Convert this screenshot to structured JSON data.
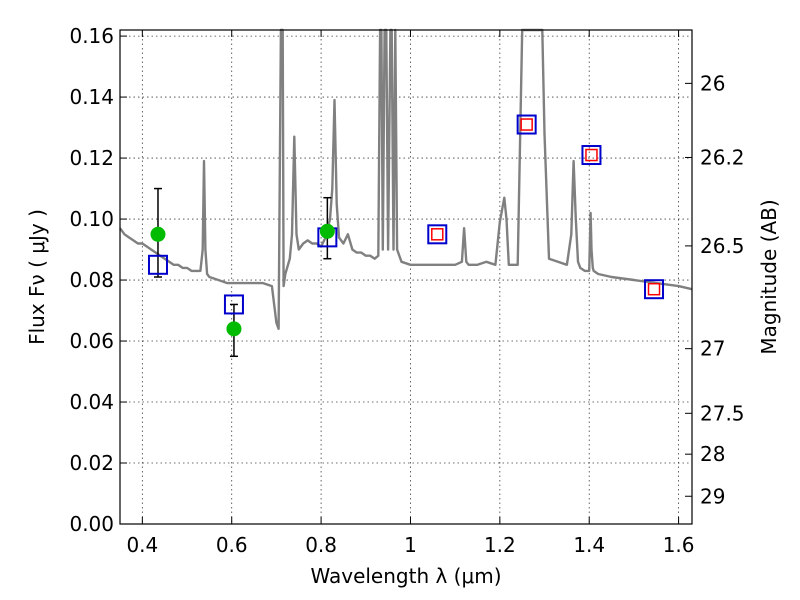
{
  "chart_data": {
    "type": "scatter",
    "xlabel": "Wavelength  λ (μm)",
    "ylabel": "Flux  Fν  ( μJy )",
    "ylabel_right": "Magnitude (AB)",
    "xlim": [
      0.35,
      1.63
    ],
    "ylim": [
      0.0,
      0.162
    ],
    "x_ticks": [
      0.4,
      0.6,
      0.8,
      1.0,
      1.2,
      1.4,
      1.6
    ],
    "x_tick_labels": [
      "0.4",
      "0.6",
      "0.8",
      "1",
      "1.2",
      "1.4",
      "1.6"
    ],
    "y_ticks": [
      0.0,
      0.02,
      0.04,
      0.06,
      0.08,
      0.1,
      0.12,
      0.14,
      0.16
    ],
    "y_tick_labels": [
      "0.00",
      "0.02",
      "0.04",
      "0.06",
      "0.08",
      "0.10",
      "0.12",
      "0.14",
      "0.16"
    ],
    "right_ticks": [
      {
        "flux": 0.1445,
        "label": "26"
      },
      {
        "flux": 0.1202,
        "label": "26.2"
      },
      {
        "flux": 0.0912,
        "label": "26.5"
      },
      {
        "flux": 0.0575,
        "label": "27"
      },
      {
        "flux": 0.0363,
        "label": "27.5"
      },
      {
        "flux": 0.0229,
        "label": "28"
      },
      {
        "flux": 0.0091,
        "label": "29"
      }
    ],
    "grid": true,
    "colors": {
      "spectrum": "#808080",
      "observed": "#00bb00",
      "model_square": "#0000cc",
      "model_inner": "#ff0000",
      "errorbar": "#000000"
    },
    "series": [
      {
        "name": "model spectrum",
        "kind": "line",
        "x": [
          0.35,
          0.36,
          0.37,
          0.38,
          0.39,
          0.4,
          0.41,
          0.42,
          0.43,
          0.44,
          0.45,
          0.46,
          0.47,
          0.48,
          0.49,
          0.5,
          0.51,
          0.52,
          0.53,
          0.535,
          0.538,
          0.541,
          0.545,
          0.55,
          0.57,
          0.59,
          0.61,
          0.63,
          0.65,
          0.67,
          0.69,
          0.7,
          0.705,
          0.71,
          0.712,
          0.714,
          0.716,
          0.718,
          0.72,
          0.73,
          0.735,
          0.74,
          0.745,
          0.75,
          0.76,
          0.77,
          0.78,
          0.79,
          0.8,
          0.81,
          0.82,
          0.825,
          0.83,
          0.835,
          0.84,
          0.85,
          0.86,
          0.87,
          0.88,
          0.89,
          0.9,
          0.91,
          0.92,
          0.928,
          0.932,
          0.935,
          0.938,
          0.942,
          0.946,
          0.95,
          0.955,
          0.958,
          0.962,
          0.966,
          0.97,
          0.98,
          1.0,
          1.02,
          1.04,
          1.06,
          1.08,
          1.1,
          1.115,
          1.12,
          1.125,
          1.13,
          1.15,
          1.17,
          1.19,
          1.2,
          1.21,
          1.215,
          1.22,
          1.23,
          1.24,
          1.25,
          1.255,
          1.26,
          1.265,
          1.27,
          1.275,
          1.28,
          1.285,
          1.29,
          1.295,
          1.3,
          1.31,
          1.33,
          1.35,
          1.36,
          1.365,
          1.37,
          1.375,
          1.38,
          1.39,
          1.4,
          1.403,
          1.405,
          1.408,
          1.41,
          1.42,
          1.45,
          1.5,
          1.55,
          1.6,
          1.63
        ],
        "y": [
          0.097,
          0.095,
          0.094,
          0.093,
          0.092,
          0.092,
          0.091,
          0.09,
          0.089,
          0.088,
          0.087,
          0.086,
          0.085,
          0.085,
          0.084,
          0.084,
          0.083,
          0.083,
          0.083,
          0.09,
          0.119,
          0.09,
          0.082,
          0.081,
          0.08,
          0.079,
          0.079,
          0.079,
          0.079,
          0.079,
          0.078,
          0.066,
          0.064,
          0.162,
          0.162,
          0.162,
          0.078,
          0.08,
          0.082,
          0.087,
          0.095,
          0.127,
          0.095,
          0.09,
          0.092,
          0.093,
          0.092,
          0.092,
          0.091,
          0.094,
          0.1,
          0.11,
          0.139,
          0.105,
          0.094,
          0.092,
          0.095,
          0.09,
          0.089,
          0.089,
          0.088,
          0.088,
          0.087,
          0.088,
          0.162,
          0.162,
          0.09,
          0.162,
          0.162,
          0.09,
          0.162,
          0.162,
          0.09,
          0.162,
          0.09,
          0.086,
          0.085,
          0.085,
          0.085,
          0.085,
          0.085,
          0.085,
          0.086,
          0.097,
          0.086,
          0.085,
          0.085,
          0.086,
          0.085,
          0.099,
          0.107,
          0.1,
          0.085,
          0.085,
          0.085,
          0.162,
          0.162,
          0.162,
          0.162,
          0.162,
          0.162,
          0.162,
          0.162,
          0.162,
          0.162,
          0.128,
          0.087,
          0.086,
          0.085,
          0.095,
          0.119,
          0.1,
          0.086,
          0.084,
          0.083,
          0.083,
          0.102,
          0.09,
          0.084,
          0.083,
          0.082,
          0.081,
          0.08,
          0.079,
          0.078,
          0.077
        ]
      },
      {
        "name": "observed photometry",
        "kind": "points",
        "marker": "circle",
        "points": [
          {
            "x": 0.435,
            "y": 0.095,
            "err_lo": 0.081,
            "err_hi": 0.11
          },
          {
            "x": 0.605,
            "y": 0.064,
            "err_lo": 0.055,
            "err_hi": 0.072
          },
          {
            "x": 0.814,
            "y": 0.096,
            "err_lo": 0.087,
            "err_hi": 0.107
          }
        ]
      },
      {
        "name": "model photometry",
        "kind": "points",
        "marker": "square",
        "points": [
          {
            "x": 0.435,
            "y": 0.085,
            "inner": false
          },
          {
            "x": 0.605,
            "y": 0.072,
            "inner": false
          },
          {
            "x": 0.814,
            "y": 0.094,
            "inner": false
          },
          {
            "x": 1.06,
            "y": 0.095,
            "inner": true
          },
          {
            "x": 1.26,
            "y": 0.131,
            "inner": true
          },
          {
            "x": 1.405,
            "y": 0.121,
            "inner": true
          },
          {
            "x": 1.545,
            "y": 0.077,
            "inner": true
          }
        ]
      }
    ]
  }
}
